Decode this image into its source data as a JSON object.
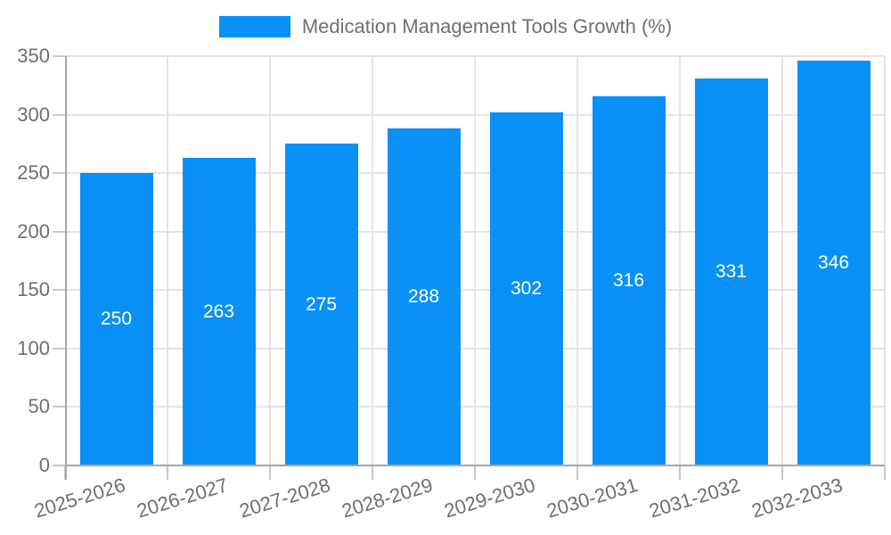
{
  "legend": {
    "label": "Medication Management Tools Growth (%)"
  },
  "chart_data": {
    "type": "bar",
    "title": "Medication Management Tools Growth (%)",
    "categories": [
      "2025-2026",
      "2026-2027",
      "2027-2028",
      "2028-2029",
      "2029-2030",
      "2030-2031",
      "2031-2032",
      "2032-2033"
    ],
    "values": [
      250,
      263,
      275,
      288,
      302,
      316,
      331,
      346
    ],
    "bar_labels": [
      "250",
      "263",
      "275",
      "288",
      "302",
      "316",
      "331",
      "346"
    ],
    "xlabel": "",
    "ylabel": "",
    "ylim": [
      0,
      350
    ],
    "yticks": [
      0,
      50,
      100,
      150,
      200,
      250,
      300,
      350
    ],
    "grid": true,
    "legend_position": "top-center",
    "bar_label_position": "inside-center",
    "colors": {
      "bar": "#0991f8",
      "bar_label": "#ffffff",
      "axis_text": "#6f6f6f",
      "legend_text": "#707070",
      "grid": "#e4e4e4",
      "tick": "#c9c9c9",
      "axis_line": "#a6a6a6",
      "background": "#ffffff"
    }
  }
}
